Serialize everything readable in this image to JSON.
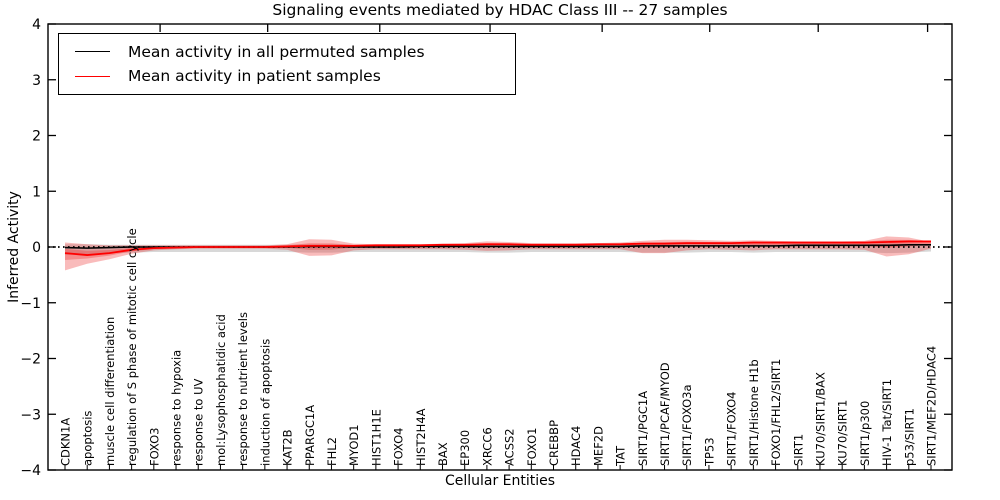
{
  "chart_data": {
    "type": "line",
    "title": "Signaling events mediated by HDAC Class III -- 27 samples",
    "xlabel": "Cellular Entities",
    "ylabel": "Inferred Activity",
    "ylim": [
      -4,
      4
    ],
    "yticks": [
      -4,
      -3,
      -2,
      -1,
      0,
      1,
      2,
      3,
      4
    ],
    "ytick_labels": [
      "−4",
      "−3",
      "−2",
      "−1",
      "0",
      "1",
      "2",
      "3",
      "4"
    ],
    "grid": false,
    "legend_position": "upper left",
    "zero_reference": 0,
    "categories": [
      "CDKN1A",
      "apoptosis",
      "muscle cell differentiation",
      "regulation of S phase of mitotic cell cycle",
      "FOXO3",
      "response to hypoxia",
      "response to UV",
      "mol:Lysophosphatidic acid",
      "response to nutrient levels",
      "induction of apoptosis",
      "KAT2B",
      "PPARGC1A",
      "FHL2",
      "MYOD1",
      "HIST1H1E",
      "FOXO4",
      "HIST2H4A",
      "BAX",
      "EP300",
      "XRCC6",
      "ACSS2",
      "FOXO1",
      "CREBBP",
      "HDAC4",
      "MEF2D",
      "TAT",
      "SIRT1/PGC1A",
      "SIRT1/PCAF/MYOD",
      "SIRT1/FOXO3a",
      "TP53",
      "SIRT1/FOXO4",
      "SIRT1/Histone H1b",
      "FOXO1/FHL2/SIRT1",
      "SIRT1",
      "KU70/SIRT1/BAX",
      "KU70/SIRT1",
      "SIRT1/p300",
      "HIV-1 Tat/SIRT1",
      "p53/SIRT1",
      "SIRT1/MEF2D/HDAC4"
    ],
    "series": [
      {
        "name": "Mean activity in all permuted samples",
        "color": "#000000",
        "band_color": "rgba(115,115,115,0.28)",
        "values": [
          -0.01,
          -0.02,
          -0.01,
          0.0,
          0.0,
          0.0,
          0.0,
          0.0,
          0.0,
          0.0,
          0.0,
          0.01,
          0.01,
          0.0,
          0.0,
          0.0,
          0.01,
          0.01,
          0.01,
          0.01,
          0.01,
          0.01,
          0.01,
          0.01,
          0.01,
          0.01,
          0.02,
          0.02,
          0.02,
          0.02,
          0.02,
          0.02,
          0.02,
          0.03,
          0.03,
          0.03,
          0.03,
          0.03,
          0.04,
          0.04
        ],
        "band_upper": [
          0.05,
          0.05,
          0.04,
          0.04,
          0.04,
          0.04,
          0.04,
          0.04,
          0.04,
          0.04,
          0.04,
          0.05,
          0.05,
          0.04,
          0.04,
          0.04,
          0.04,
          0.04,
          0.04,
          0.05,
          0.05,
          0.04,
          0.04,
          0.04,
          0.04,
          0.04,
          0.05,
          0.05,
          0.05,
          0.05,
          0.05,
          0.05,
          0.05,
          0.05,
          0.05,
          0.05,
          0.05,
          0.06,
          0.06,
          0.05
        ],
        "band_lower": [
          -0.14,
          -0.13,
          -0.11,
          -0.1,
          -0.09,
          -0.09,
          -0.09,
          -0.09,
          -0.09,
          -0.09,
          -0.09,
          -0.1,
          -0.1,
          -0.09,
          -0.09,
          -0.09,
          -0.09,
          -0.09,
          -0.09,
          -0.1,
          -0.1,
          -0.09,
          -0.09,
          -0.09,
          -0.09,
          -0.09,
          -0.1,
          -0.1,
          -0.1,
          -0.09,
          -0.09,
          -0.1,
          -0.09,
          -0.09,
          -0.09,
          -0.09,
          -0.09,
          -0.11,
          -0.1,
          -0.08
        ]
      },
      {
        "name": "Mean activity in patient samples",
        "color": "#ff0000",
        "band_color": "rgba(235,30,30,0.30)",
        "values": [
          -0.11,
          -0.145,
          -0.11,
          -0.05,
          -0.02,
          -0.01,
          0.0,
          0.0,
          0.0,
          0.0,
          0.01,
          0.02,
          0.02,
          0.02,
          0.03,
          0.03,
          0.03,
          0.04,
          0.04,
          0.05,
          0.05,
          0.04,
          0.04,
          0.04,
          0.05,
          0.05,
          0.06,
          0.06,
          0.07,
          0.07,
          0.07,
          0.08,
          0.08,
          0.08,
          0.08,
          0.08,
          0.08,
          0.09,
          0.1,
          0.1
        ],
        "band_upper": [
          0.08,
          0.05,
          0.03,
          0.03,
          0.03,
          0.03,
          0.03,
          0.03,
          0.03,
          0.03,
          0.05,
          0.14,
          0.13,
          0.06,
          0.05,
          0.05,
          0.05,
          0.06,
          0.07,
          0.1,
          0.09,
          0.07,
          0.07,
          0.07,
          0.07,
          0.08,
          0.11,
          0.13,
          0.13,
          0.12,
          0.11,
          0.12,
          0.11,
          0.1,
          0.1,
          0.1,
          0.11,
          0.19,
          0.17,
          0.09
        ],
        "band_lower": [
          -0.42,
          -0.3,
          -0.22,
          -0.12,
          -0.06,
          -0.04,
          -0.03,
          -0.03,
          -0.03,
          -0.03,
          -0.05,
          -0.16,
          -0.15,
          -0.06,
          -0.04,
          -0.04,
          -0.04,
          -0.04,
          -0.05,
          -0.07,
          -0.06,
          -0.04,
          -0.04,
          -0.04,
          -0.04,
          -0.04,
          -0.11,
          -0.11,
          -0.06,
          -0.04,
          -0.05,
          -0.06,
          -0.04,
          -0.04,
          -0.04,
          -0.04,
          -0.05,
          -0.17,
          -0.13,
          -0.03
        ]
      }
    ],
    "legend": [
      {
        "label": "Mean activity in all permuted samples",
        "color": "#000000"
      },
      {
        "label": "Mean activity in patient samples",
        "color": "#ff0000"
      }
    ]
  },
  "colors": {
    "axis": "#000000",
    "background": "#ffffff",
    "patient_line": "#ff0000",
    "permuted_line": "#000000"
  }
}
